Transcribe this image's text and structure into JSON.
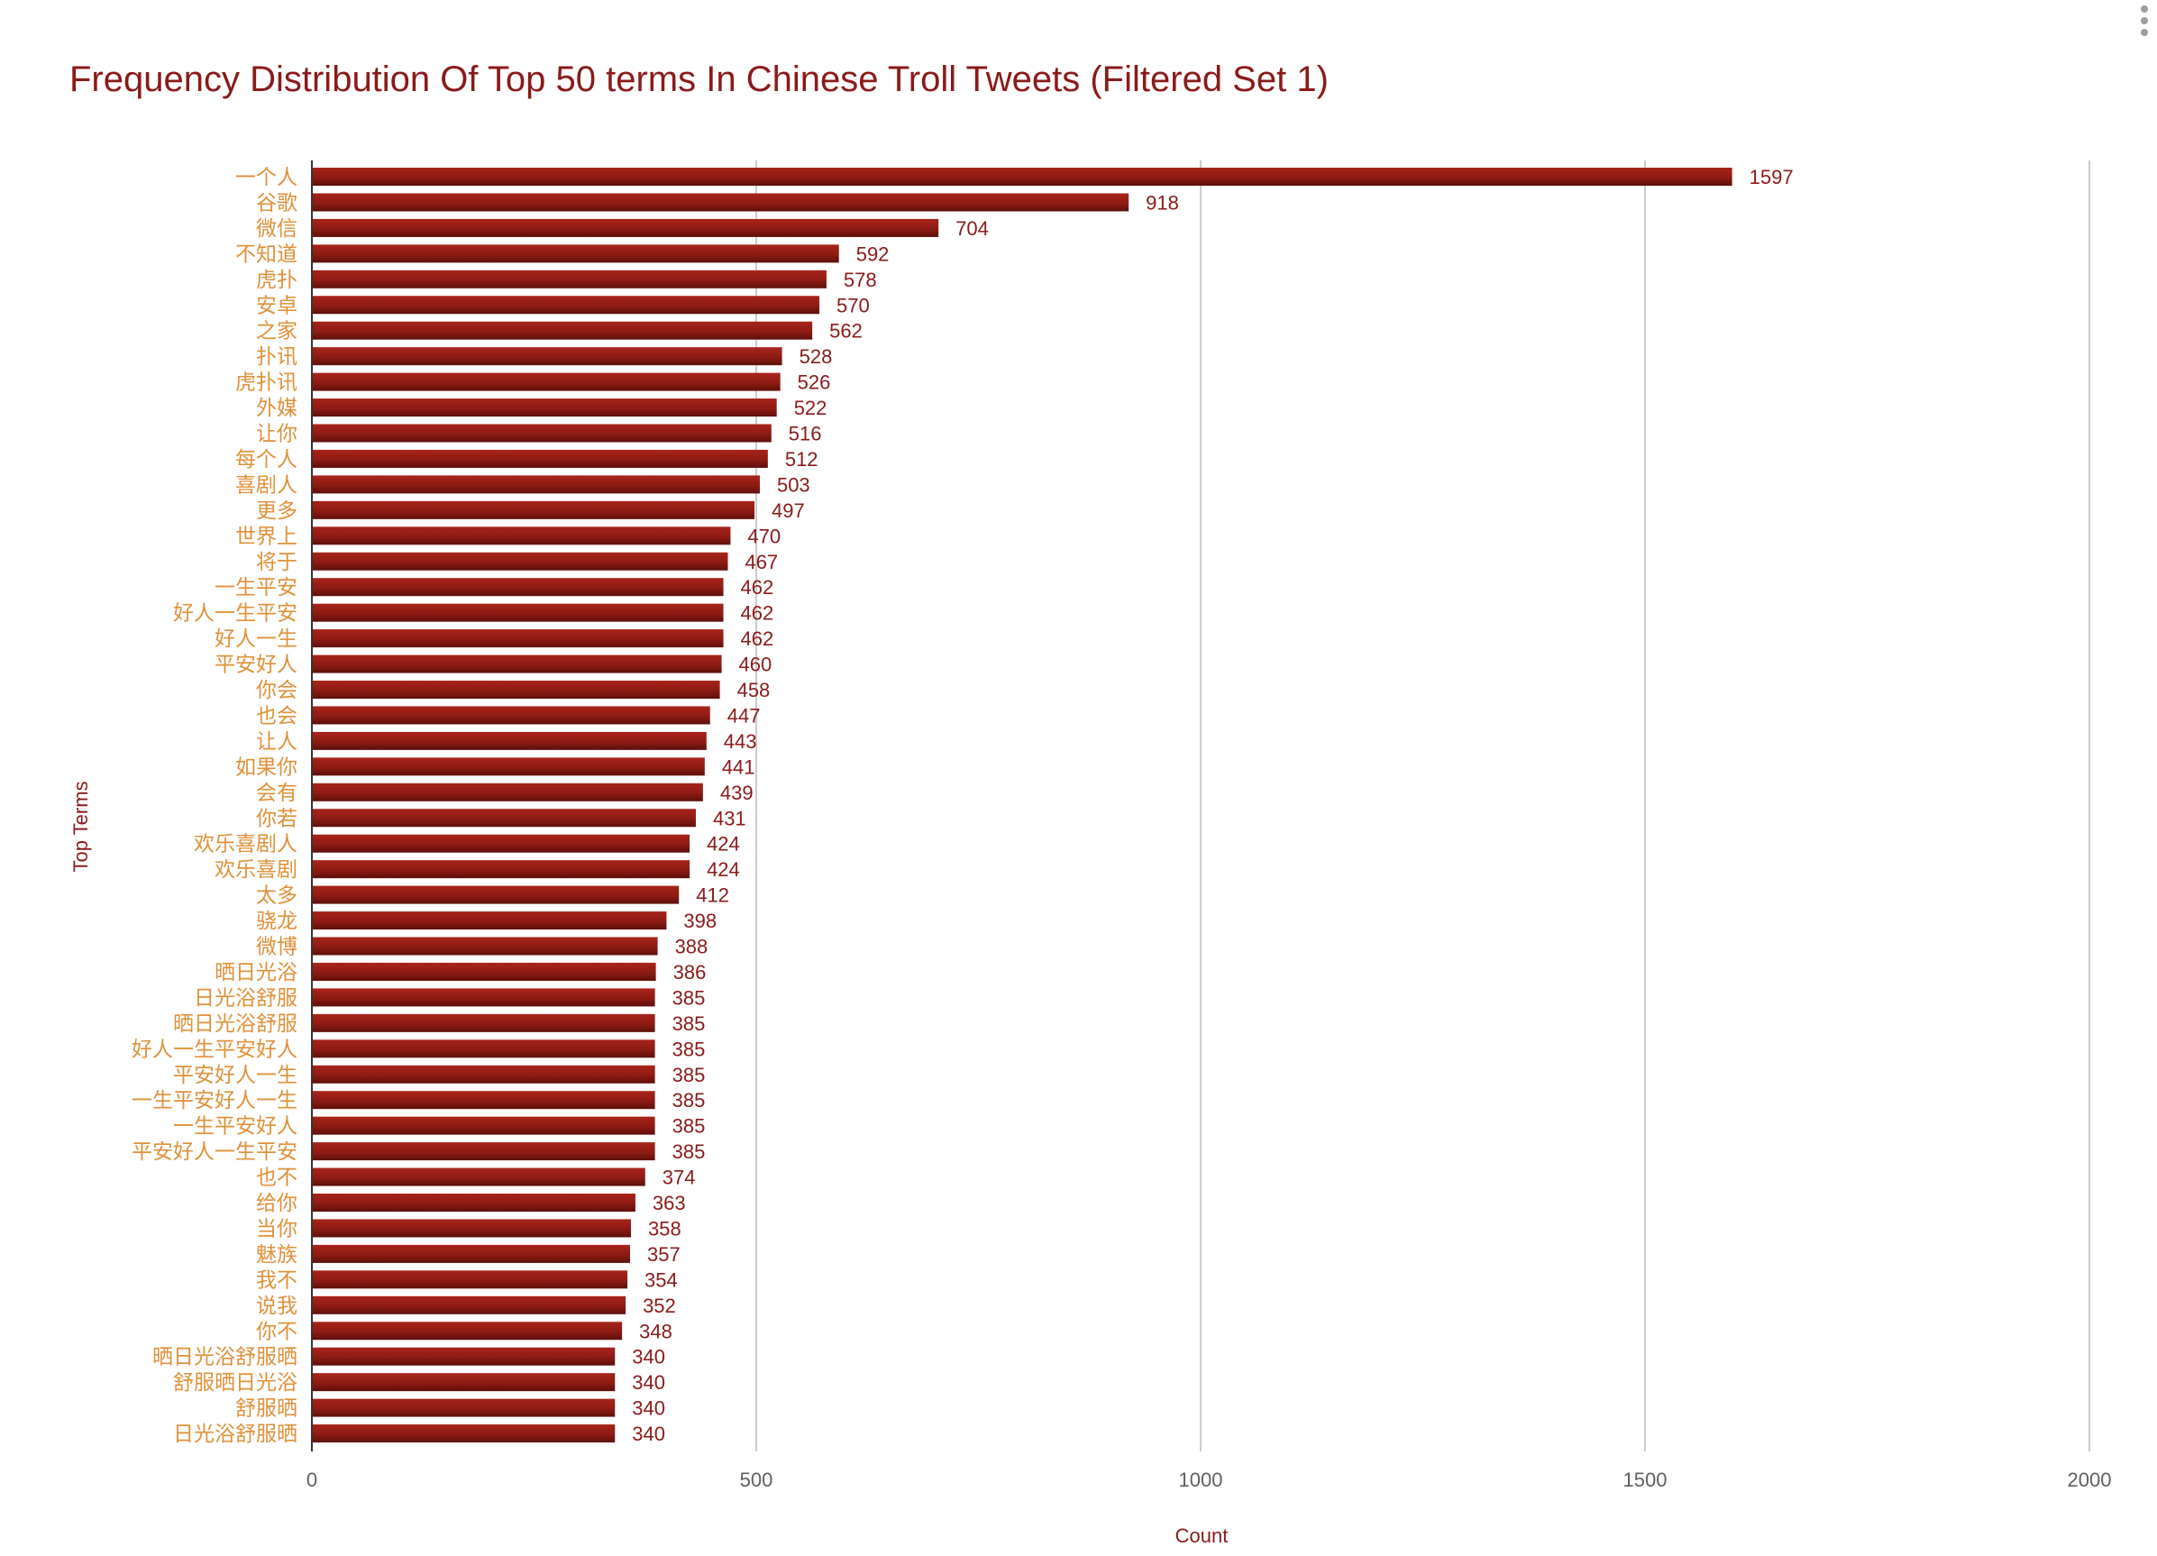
{
  "chart_data": {
    "type": "bar",
    "orientation": "horizontal",
    "title": "Frequency Distribution Of Top 50 terms In Chinese Troll Tweets (Filtered Set 1)",
    "xlabel": "Count",
    "ylabel": "Top Terms",
    "xlim": [
      0,
      2000
    ],
    "xticks": [
      "0",
      "500",
      "1000",
      "1500",
      "2000"
    ],
    "grid": true,
    "legend": "none",
    "bar_color": "#8e1b14",
    "categories": [
      "一个人",
      "谷歌",
      "微信",
      "不知道",
      "虎扑",
      "安卓",
      "之家",
      "扑讯",
      "虎扑讯",
      "外媒",
      "让你",
      "每个人",
      "喜剧人",
      "更多",
      "世界上",
      "将于",
      "一生平安",
      "好人一生平安",
      "好人一生",
      "平安好人",
      "你会",
      "也会",
      "让人",
      "如果你",
      "会有",
      "你若",
      "欢乐喜剧人",
      "欢乐喜剧",
      "太多",
      "骁龙",
      "微博",
      "晒日光浴",
      "日光浴舒服",
      "晒日光浴舒服",
      "好人一生平安好人",
      "平安好人一生",
      "一生平安好人一生",
      "一生平安好人",
      "平安好人一生平安",
      "也不",
      "给你",
      "当你",
      "魅族",
      "我不",
      "说我",
      "你不",
      "晒日光浴舒服晒",
      "舒服晒日光浴",
      "舒服晒",
      "日光浴舒服晒"
    ],
    "values": [
      1597,
      918,
      704,
      592,
      578,
      570,
      562,
      528,
      526,
      522,
      516,
      512,
      503,
      497,
      470,
      467,
      462,
      462,
      462,
      460,
      458,
      447,
      443,
      441,
      439,
      431,
      424,
      424,
      412,
      398,
      388,
      386,
      385,
      385,
      385,
      385,
      385,
      385,
      385,
      374,
      363,
      358,
      357,
      354,
      352,
      348,
      340,
      340,
      340,
      340
    ]
  },
  "colors": {
    "title": "#8b1a1a",
    "category_label": "#e0913a",
    "data_label": "#8b1a1a",
    "gridline": "#cccccc",
    "axis": "#333333"
  },
  "icons": {
    "menu": "vertical-dots-menu-icon"
  }
}
